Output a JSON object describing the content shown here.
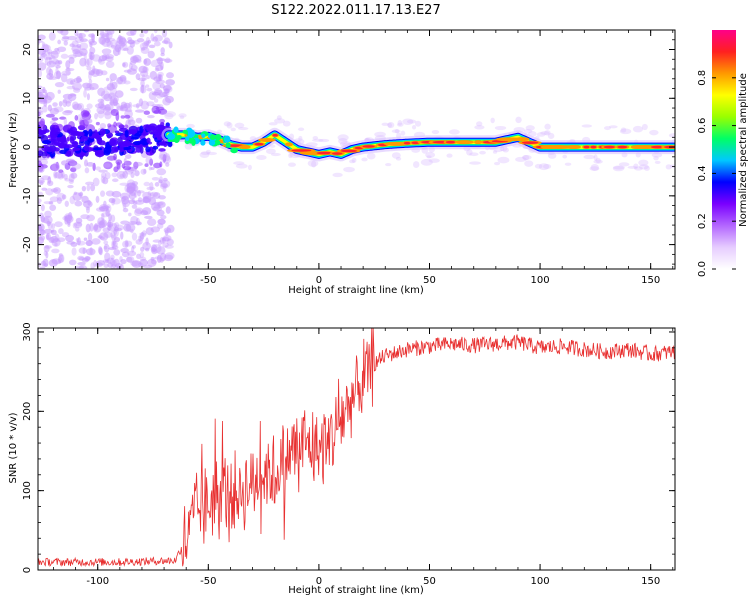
{
  "title": "S122.2022.011.17.13.E27",
  "chart_data": [
    {
      "type": "heatmap",
      "xlabel": "Height of straight line (km)",
      "ylabel": "Frequency (Hz)",
      "xlim": [
        -127,
        161
      ],
      "ylim": [
        -25,
        24
      ],
      "xticks": [
        -100,
        -50,
        0,
        50,
        100,
        150
      ],
      "yticks": [
        -20,
        -10,
        0,
        10,
        20
      ],
      "colorbar": {
        "label": "Normalized spectral amplitude",
        "range": [
          0,
          1
        ],
        "ticks": [
          "0.0",
          "0.2",
          "0.4",
          "0.6",
          "0.8"
        ],
        "colors": [
          "#ffffff",
          "#e6ccff",
          "#b366ff",
          "#7a00ff",
          "#0000ff",
          "#00c8ff",
          "#00ff66",
          "#99ff00",
          "#ffff00",
          "#ff9900",
          "#ff2020",
          "#ff0088"
        ]
      },
      "ridge": {
        "x": [
          -127,
          -100,
          -80,
          -68,
          -60,
          -55,
          -50,
          -45,
          -40,
          -35,
          -30,
          -25,
          -20,
          -15,
          -10,
          -5,
          0,
          5,
          10,
          15,
          20,
          30,
          40,
          50,
          60,
          70,
          80,
          85,
          90,
          95,
          100,
          110,
          120,
          130,
          140,
          150,
          161
        ],
        "y": [
          1,
          1,
          1.5,
          2.5,
          2.5,
          2,
          2.2,
          1.5,
          0.5,
          0,
          0,
          1,
          2.5,
          1,
          -0.5,
          -1,
          -1.5,
          -1,
          -1.5,
          -0.5,
          0,
          0.5,
          0.8,
          1,
          1,
          1,
          1,
          1.5,
          2,
          1,
          0,
          0,
          0,
          0,
          0,
          0,
          0
        ]
      }
    },
    {
      "type": "line",
      "xlabel": "Height of straight line (km)",
      "ylabel": "SNR (10 * v/v)",
      "xlim": [
        -127,
        161
      ],
      "ylim": [
        0,
        305
      ],
      "xticks": [
        -100,
        -50,
        0,
        50,
        100,
        150
      ],
      "yticks": [
        0,
        100,
        200,
        300
      ],
      "color": "#e83030",
      "trend": {
        "x": [
          -127,
          -90,
          -65,
          -60,
          -55,
          -50,
          -45,
          -40,
          -35,
          -30,
          -25,
          -20,
          -15,
          -10,
          -5,
          0,
          5,
          10,
          15,
          20,
          25,
          30,
          40,
          50,
          60,
          70,
          80,
          90,
          100,
          110,
          120,
          130,
          140,
          150,
          161
        ],
        "y": [
          10,
          10,
          12,
          40,
          75,
          80,
          100,
          95,
          100,
          110,
          125,
          120,
          140,
          155,
          160,
          150,
          165,
          190,
          215,
          240,
          260,
          270,
          278,
          282,
          285,
          283,
          285,
          287,
          280,
          282,
          278,
          275,
          278,
          272,
          275
        ]
      }
    }
  ]
}
